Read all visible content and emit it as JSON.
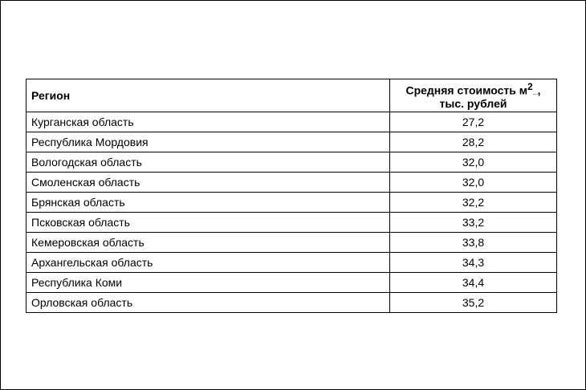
{
  "table": {
    "header_region": "Регион",
    "header_price_line1": "Средняя стоимость м",
    "header_price_sup": "2",
    "header_price_comma": ",",
    "header_price_line2": "тыс. рублей",
    "rows": [
      {
        "region": "Курганская область",
        "price": "27,2"
      },
      {
        "region": "Республика Мордовия",
        "price": "28,2"
      },
      {
        "region": "Вологодская область",
        "price": "32,0"
      },
      {
        "region": "Смоленская область",
        "price": "32,0"
      },
      {
        "region": "Брянская область",
        "price": "32,2"
      },
      {
        "region": "Псковская область",
        "price": "33,2"
      },
      {
        "region": "Кемеровская область",
        "price": "33,8"
      },
      {
        "region": "Архангельская область",
        "price": "34,3"
      },
      {
        "region": "Республика Коми",
        "price": "34,4"
      },
      {
        "region": "Орловская область",
        "price": "35,2"
      }
    ]
  }
}
